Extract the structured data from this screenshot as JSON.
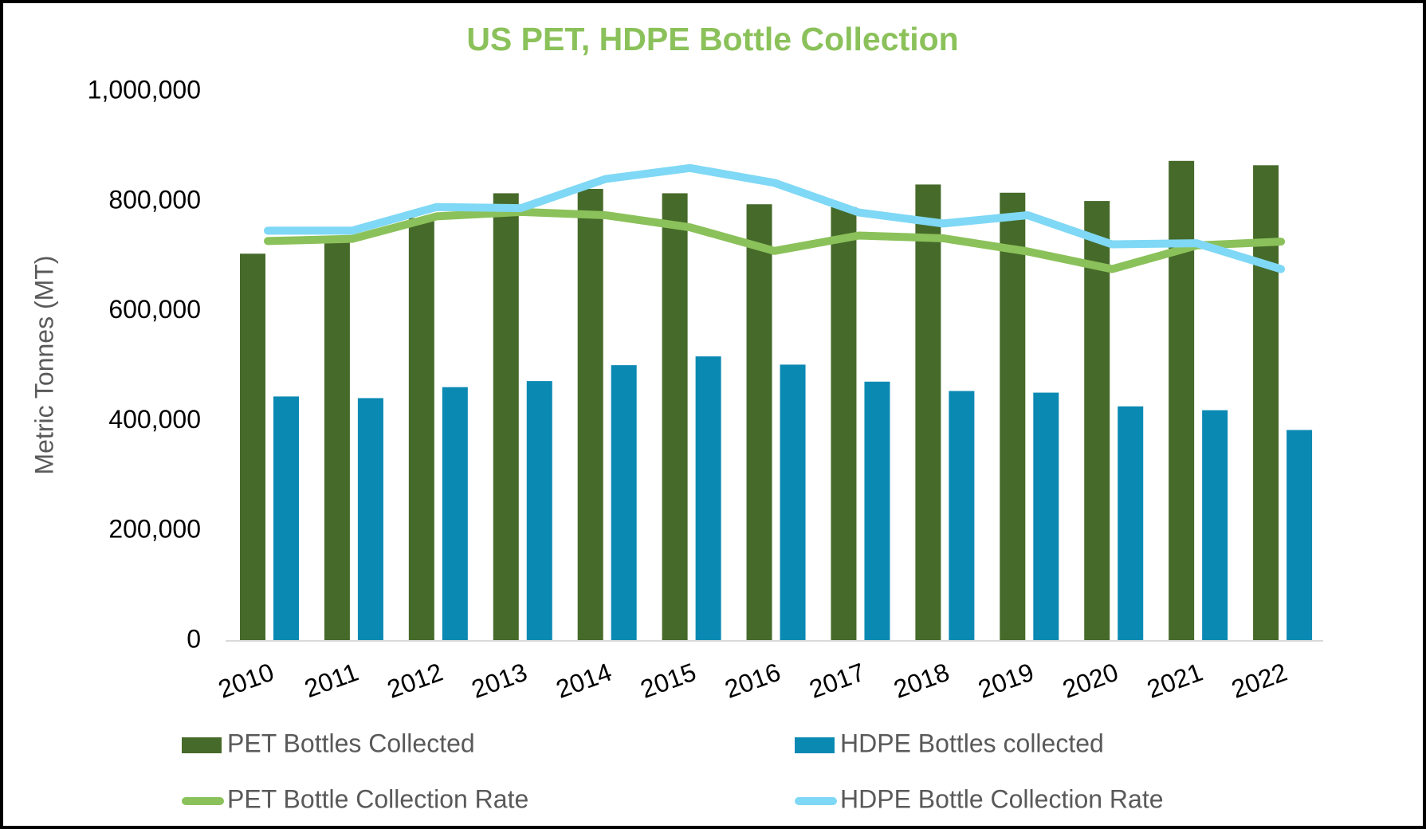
{
  "chart_data": {
    "type": "bar-line",
    "title": "US PET, HDPE Bottle Collection",
    "y_label": "Metric Tonnes (MT)",
    "categories": [
      "2010",
      "2011",
      "2012",
      "2013",
      "2014",
      "2015",
      "2016",
      "2017",
      "2018",
      "2019",
      "2020",
      "2021",
      "2022"
    ],
    "series": [
      {
        "name": "PET Bottles Collected",
        "type": "bar",
        "color": "#466a2a",
        "values": [
          705000,
          735000,
          770000,
          815000,
          823000,
          815000,
          795000,
          790000,
          831000,
          816000,
          801000,
          874000,
          866000
        ]
      },
      {
        "name": "HDPE Bottles collected",
        "type": "bar",
        "color": "#0a89b3",
        "values": [
          445000,
          442000,
          462000,
          473000,
          502000,
          518000,
          503000,
          472000,
          455000,
          452000,
          427000,
          420000,
          384000
        ]
      },
      {
        "name": "PET Bottle Collection Rate",
        "type": "line",
        "color": "#8bc15a",
        "values": [
          728000,
          732000,
          773000,
          781000,
          775000,
          753000,
          710000,
          738000,
          733000,
          709000,
          677000,
          720000,
          727000
        ]
      },
      {
        "name": "HDPE Bottle Collection Rate",
        "type": "line",
        "color": "#7fd8f5",
        "values": [
          747000,
          747000,
          790000,
          788000,
          841000,
          861000,
          834000,
          780000,
          760000,
          775000,
          722000,
          724000,
          677000
        ]
      }
    ],
    "ylim": [
      0,
      1000000
    ],
    "yticks": [
      0,
      {
        "value": 200000,
        "label": "200,000"
      },
      {
        "value": 400000,
        "label": "400,000"
      },
      {
        "value": 600000,
        "label": "600,000"
      },
      {
        "value": 800000,
        "label": "800,000"
      },
      {
        "value": 1000000,
        "label": "1,000,000"
      }
    ],
    "grid": false,
    "legend": "bottom"
  }
}
